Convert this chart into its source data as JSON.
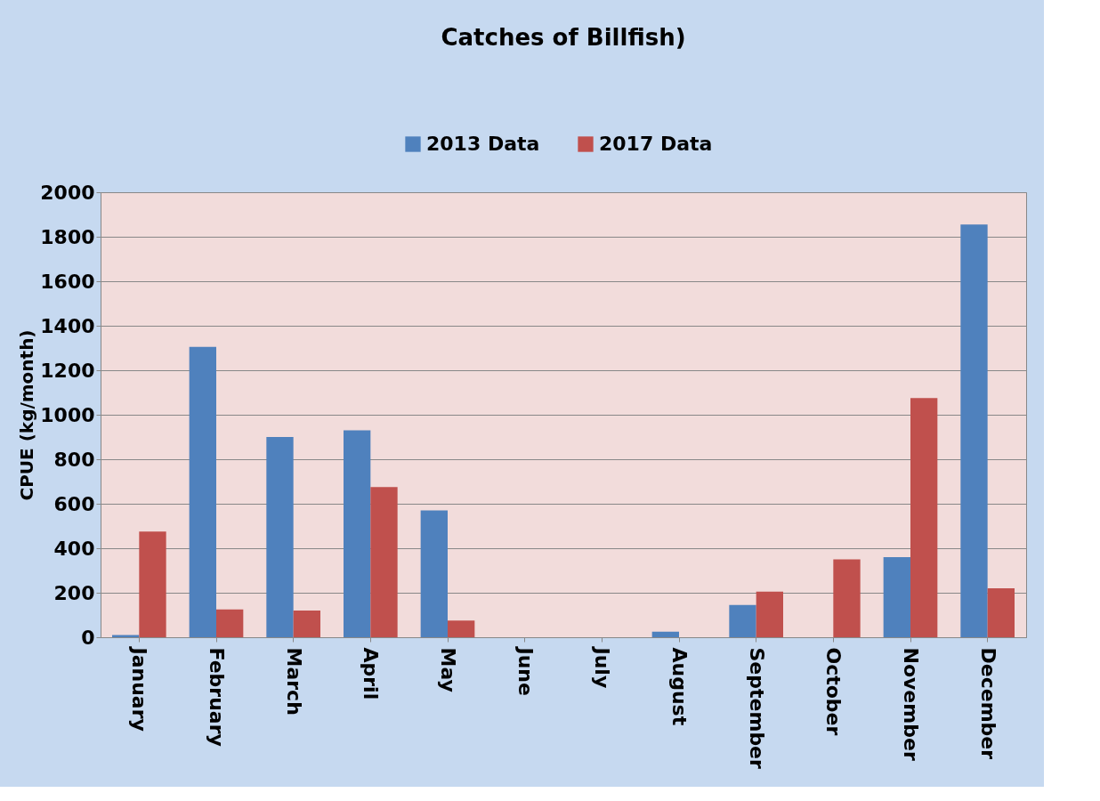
{
  "chart_data": {
    "type": "bar",
    "title": "Catches of Billfish)",
    "ylabel": "CPUE (kg/month)",
    "categories": [
      "January",
      "February",
      "March",
      "April",
      "May",
      "June",
      "July",
      "August",
      "September",
      "October",
      "November",
      "December"
    ],
    "series": [
      {
        "name": "2013 Data",
        "color": "#4f81bd",
        "values": [
          10,
          1305,
          900,
          930,
          570,
          0,
          0,
          25,
          145,
          0,
          360,
          1855
        ]
      },
      {
        "name": "2017 Data",
        "color": "#c0504d",
        "values": [
          475,
          125,
          120,
          675,
          75,
          0,
          0,
          0,
          205,
          350,
          1075,
          220
        ]
      }
    ],
    "ylim": [
      0,
      2000
    ],
    "yticks": [
      0,
      200,
      400,
      600,
      800,
      1000,
      1200,
      1400,
      1600,
      1800,
      2000
    ],
    "grid": "y",
    "legend": "top"
  }
}
